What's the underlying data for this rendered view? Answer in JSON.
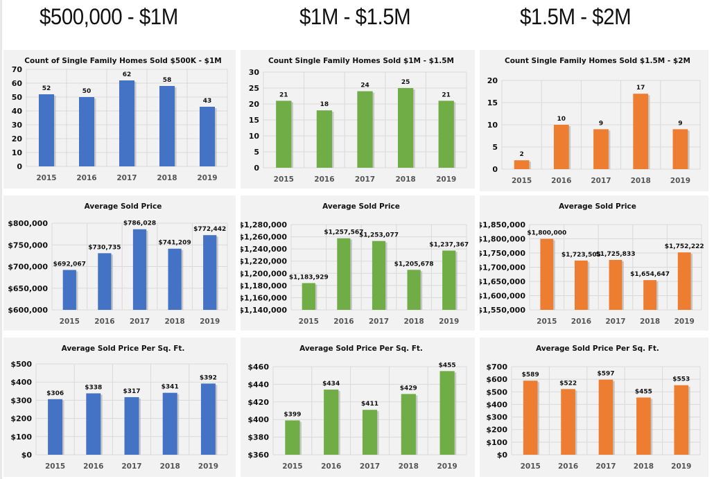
{
  "header": {
    "columns": [
      {
        "title": "$500,000 - $1M"
      },
      {
        "title": "$1M - $1.5M"
      },
      {
        "title": "$1.5M - $2M"
      }
    ]
  },
  "colors": {
    "blue": "#4472c4",
    "green": "#70ad47",
    "orange": "#ed7d31",
    "panel_bg": "#f2f2f2",
    "grid": "#d9d9d9"
  },
  "chart_data": [
    {
      "id": "count-500k-1m",
      "type": "bar",
      "color_key": "blue",
      "title": "Count of Single Family Homes Sold $500K - $1M",
      "categories": [
        "2015",
        "2016",
        "2017",
        "2018",
        "2019"
      ],
      "values": [
        52,
        50,
        62,
        58,
        43
      ],
      "labels": [
        "52",
        "50",
        "62",
        "58",
        "43"
      ],
      "ylim": [
        0,
        70
      ],
      "yticks": [
        0,
        10,
        20,
        30,
        40,
        50,
        60,
        70
      ],
      "ytick_labels": [
        "0",
        "10",
        "20",
        "30",
        "40",
        "50",
        "60",
        "70"
      ],
      "xlabel": "",
      "ylabel": "",
      "grid": true,
      "legend": "none"
    },
    {
      "id": "count-1m-1_5m",
      "type": "bar",
      "color_key": "green",
      "title": "Count Single Family Homes Sold $1M - $1.5M",
      "categories": [
        "2015",
        "2016",
        "2017",
        "2018",
        "2019"
      ],
      "values": [
        21,
        18,
        24,
        25,
        21
      ],
      "labels": [
        "21",
        "18",
        "24",
        "25",
        "21"
      ],
      "ylim": [
        0,
        30
      ],
      "yticks": [
        0,
        5,
        10,
        15,
        20,
        25,
        30
      ],
      "ytick_labels": [
        "0",
        "5",
        "10",
        "15",
        "20",
        "25",
        "30"
      ],
      "xlabel": "",
      "ylabel": "",
      "grid": true,
      "legend": "none"
    },
    {
      "id": "count-1_5m-2m",
      "type": "bar",
      "color_key": "orange",
      "title": "Count Single Family Homes Sold $1.5M - $2M",
      "categories": [
        "2015",
        "2016",
        "2017",
        "2018",
        "2019"
      ],
      "values": [
        2,
        10,
        9,
        17,
        9
      ],
      "labels": [
        "2",
        "10",
        "9",
        "17",
        "9"
      ],
      "ylim": [
        0,
        20
      ],
      "yticks": [
        0,
        5,
        10,
        15,
        20
      ],
      "ytick_labels": [
        "0",
        "5",
        "10",
        "15",
        "20"
      ],
      "xlabel": "",
      "ylabel": "",
      "grid": true,
      "legend": "none"
    },
    {
      "id": "avg-price-500k-1m",
      "type": "bar",
      "color_key": "blue",
      "title": "Average Sold Price",
      "categories": [
        "2015",
        "2016",
        "2017",
        "2018",
        "2019"
      ],
      "values": [
        692067,
        730735,
        786028,
        741209,
        772442
      ],
      "labels": [
        "$692,067",
        "$730,735",
        "$786,028",
        "$741,209",
        "$772,442"
      ],
      "ylim": [
        600000,
        800000
      ],
      "yticks": [
        600000,
        650000,
        700000,
        750000,
        800000
      ],
      "ytick_labels": [
        "$600,000",
        "$650,000",
        "$700,000",
        "$750,000",
        "$800,000"
      ],
      "xlabel": "",
      "ylabel": "",
      "grid": true,
      "legend": "none"
    },
    {
      "id": "avg-price-1m-1_5m",
      "type": "bar",
      "color_key": "green",
      "title": "Average Sold Price",
      "categories": [
        "2015",
        "2016",
        "2017",
        "2018",
        "2019"
      ],
      "values": [
        1183929,
        1257567,
        1253077,
        1205678,
        1237367
      ],
      "labels": [
        "$1,183,929",
        "$1,257,567",
        "$1,253,077",
        "$1,205,678",
        "$1,237,367"
      ],
      "ylim": [
        1140000,
        1280000
      ],
      "yticks": [
        1140000,
        1160000,
        1180000,
        1200000,
        1220000,
        1240000,
        1260000,
        1280000
      ],
      "ytick_labels": [
        "$1,140,000",
        "$1,160,000",
        "$1,180,000",
        "$1,200,000",
        "$1,220,000",
        "$1,240,000",
        "$1,260,000",
        "$1,280,000"
      ],
      "xlabel": "",
      "ylabel": "",
      "grid": true,
      "legend": "none"
    },
    {
      "id": "avg-price-1_5m-2m",
      "type": "bar",
      "color_key": "orange",
      "title": "Average Sold Price",
      "categories": [
        "2015",
        "2016",
        "2017",
        "2018",
        "2019"
      ],
      "values": [
        1800000,
        1723505,
        1725833,
        1654647,
        1752222
      ],
      "labels": [
        "$1,800,000",
        "$1,723,505",
        "$1,725,833",
        "$1,654,647",
        "$1,752,222"
      ],
      "ylim": [
        1550000,
        1850000
      ],
      "yticks": [
        1550000,
        1600000,
        1650000,
        1700000,
        1750000,
        1800000,
        1850000
      ],
      "ytick_labels": [
        "$1,550,000",
        "$1,600,000",
        "$1,650,000",
        "$1,700,000",
        "$1,750,000",
        "$1,800,000",
        "$1,850,000"
      ],
      "xlabel": "",
      "ylabel": "",
      "grid": true,
      "legend": "none"
    },
    {
      "id": "ppsf-500k-1m",
      "type": "bar",
      "color_key": "blue",
      "title": "Average Sold Price Per Sq. Ft.",
      "categories": [
        "2015",
        "2016",
        "2017",
        "2018",
        "2019"
      ],
      "values": [
        306,
        338,
        317,
        341,
        392
      ],
      "labels": [
        "$306",
        "$338",
        "$317",
        "$341",
        "$392"
      ],
      "ylim": [
        0,
        500
      ],
      "yticks": [
        0,
        100,
        200,
        300,
        400,
        500
      ],
      "ytick_labels": [
        "$0",
        "$100",
        "$200",
        "$300",
        "$400",
        "$500"
      ],
      "xlabel": "",
      "ylabel": "",
      "grid": true,
      "legend": "none"
    },
    {
      "id": "ppsf-1m-1_5m",
      "type": "bar",
      "color_key": "green",
      "title": "Average Sold Price Per Sq. Ft.",
      "categories": [
        "2015",
        "2016",
        "2017",
        "2018",
        "2019"
      ],
      "values": [
        399,
        434,
        411,
        429,
        455
      ],
      "labels": [
        "$399",
        "$434",
        "$411",
        "$429",
        "$455"
      ],
      "ylim": [
        360,
        460
      ],
      "yticks": [
        360,
        380,
        400,
        420,
        440,
        460
      ],
      "ytick_labels": [
        "$360",
        "$380",
        "$400",
        "$420",
        "$440",
        "$460"
      ],
      "xlabel": "",
      "ylabel": "",
      "grid": true,
      "legend": "none"
    },
    {
      "id": "ppsf-1_5m-2m",
      "type": "bar",
      "color_key": "orange",
      "title": "Average Sold Price Per Sq. Ft.",
      "categories": [
        "2015",
        "2016",
        "2017",
        "2018",
        "2019"
      ],
      "values": [
        589,
        522,
        597,
        455,
        553
      ],
      "labels": [
        "$589",
        "$522",
        "$597",
        "$455",
        "$553"
      ],
      "ylim": [
        0,
        700
      ],
      "yticks": [
        0,
        100,
        200,
        300,
        400,
        500,
        600,
        700
      ],
      "ytick_labels": [
        "$0",
        "$100",
        "$200",
        "$300",
        "$400",
        "$500",
        "$600",
        "$700"
      ],
      "xlabel": "",
      "ylabel": "",
      "grid": true,
      "legend": "none"
    }
  ]
}
